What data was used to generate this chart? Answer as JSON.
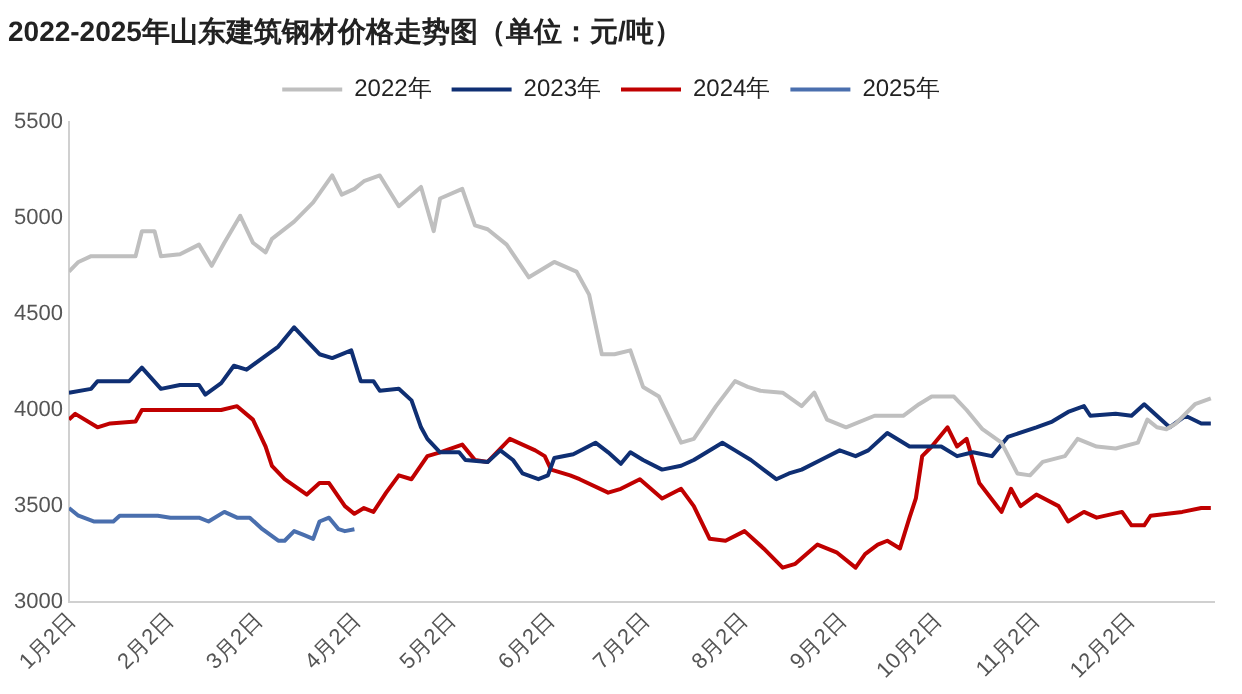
{
  "chart_data": {
    "type": "line",
    "title": "2022-2025年山东建筑钢材价格走势图（单位：元/吨）",
    "xlim": [
      "--01-01",
      "--12-28"
    ],
    "xticks": [
      {
        "value": "--01-02",
        "label": "1月2日"
      },
      {
        "value": "--02-02",
        "label": "2月2日"
      },
      {
        "value": "--03-02",
        "label": "3月2日"
      },
      {
        "value": "--04-02",
        "label": "4月2日"
      },
      {
        "value": "--05-02",
        "label": "5月2日"
      },
      {
        "value": "--06-02",
        "label": "6月2日"
      },
      {
        "value": "--07-02",
        "label": "7月2日"
      },
      {
        "value": "--08-02",
        "label": "8月2日"
      },
      {
        "value": "--09-02",
        "label": "9月2日"
      },
      {
        "value": "--10-02",
        "label": "10月2日"
      },
      {
        "value": "--11-02",
        "label": "11月2日"
      },
      {
        "value": "--12-02",
        "label": "12月2日"
      }
    ],
    "ylim": [
      3000,
      5500
    ],
    "yticks": [
      3000,
      3500,
      4000,
      4500,
      5000,
      5500
    ],
    "grid": false,
    "legend": "top",
    "marker": "none",
    "line_style": "solid",
    "series": [
      {
        "name": "2022年",
        "color": "#bfbfbf",
        "x": [
          "--01-01",
          "--01-04",
          "--01-08",
          "--01-22",
          "--01-24",
          "--01-28",
          "--01-30",
          "--02-05",
          "--02-11",
          "--02-15",
          "--02-19",
          "--02-24",
          "--02-28",
          "--03-04",
          "--03-06",
          "--03-13",
          "--03-19",
          "--03-25",
          "--03-28",
          "--04-01",
          "--04-04",
          "--04-09",
          "--04-15",
          "--04-22",
          "--04-26",
          "--04-28",
          "--05-05",
          "--05-09",
          "--05-13",
          "--05-19",
          "--05-26",
          "--06-03",
          "--06-10",
          "--06-14",
          "--06-18",
          "--06-22",
          "--06-27",
          "--07-01",
          "--07-06",
          "--07-13",
          "--07-17",
          "--07-24",
          "--07-30",
          "--08-03",
          "--08-07",
          "--08-14",
          "--08-20",
          "--08-24",
          "--08-28",
          "--09-03",
          "--09-12",
          "--09-21",
          "--09-26",
          "--09-30",
          "--10-07",
          "--10-11",
          "--10-16",
          "--10-22",
          "--10-27",
          "--10-31",
          "--11-04",
          "--11-11",
          "--11-15",
          "--11-21",
          "--11-27",
          "--12-04",
          "--12-07",
          "--12-10",
          "--12-13",
          "--12-16",
          "--12-22",
          "--12-27"
        ],
        "values": [
          4720,
          4770,
          4800,
          4800,
          4930,
          4930,
          4800,
          4810,
          4860,
          4750,
          4870,
          5010,
          4870,
          4820,
          4890,
          4980,
          5080,
          5220,
          5120,
          5150,
          5190,
          5220,
          5060,
          5160,
          4930,
          5100,
          5150,
          4960,
          4940,
          4860,
          4690,
          4770,
          4720,
          4600,
          4290,
          4290,
          4310,
          4120,
          4070,
          3830,
          3850,
          4020,
          4150,
          4120,
          4100,
          4090,
          4020,
          4090,
          3950,
          3910,
          3970,
          3970,
          4030,
          4070,
          4070,
          4000,
          3900,
          3830,
          3670,
          3660,
          3730,
          3760,
          3850,
          3810,
          3800,
          3830,
          3950,
          3910,
          3900,
          3930,
          4030,
          4060
        ]
      },
      {
        "name": "2023年",
        "color": "#0f2f73",
        "x": [
          "--01-01",
          "--01-08",
          "--01-10",
          "--01-20",
          "--01-24",
          "--01-30",
          "--02-05",
          "--02-11",
          "--02-13",
          "--02-18",
          "--02-22",
          "--02-26",
          "--03-03",
          "--03-08",
          "--03-13",
          "--03-17",
          "--03-21",
          "--03-25",
          "--03-31",
          "--04-03",
          "--04-07",
          "--04-09",
          "--04-15",
          "--04-19",
          "--04-22",
          "--04-24",
          "--04-28",
          "--05-04",
          "--05-06",
          "--05-13",
          "--05-17",
          "--05-21",
          "--05-24",
          "--05-29",
          "--06-01",
          "--06-03",
          "--06-09",
          "--06-16",
          "--06-20",
          "--06-24",
          "--06-27",
          "--07-01",
          "--07-07",
          "--07-13",
          "--07-17",
          "--07-26",
          "--07-30",
          "--08-04",
          "--08-12",
          "--08-16",
          "--08-20",
          "--08-26",
          "--09-01",
          "--09-06",
          "--09-10",
          "--09-16",
          "--09-23",
          "--10-03",
          "--10-08",
          "--10-13",
          "--10-19",
          "--10-24",
          "--11-02",
          "--11-07",
          "--11-12",
          "--11-17",
          "--11-19",
          "--11-27",
          "--12-02",
          "--12-06",
          "--12-10",
          "--12-14",
          "--12-19",
          "--12-24",
          "--12-27"
        ],
        "values": [
          4090,
          4110,
          4150,
          4150,
          4220,
          4110,
          4130,
          4130,
          4080,
          4140,
          4230,
          4210,
          4270,
          4330,
          4430,
          4360,
          4290,
          4270,
          4310,
          4150,
          4150,
          4100,
          4110,
          4050,
          3910,
          3850,
          3780,
          3780,
          3740,
          3730,
          3790,
          3740,
          3670,
          3640,
          3660,
          3750,
          3770,
          3830,
          3780,
          3720,
          3780,
          3740,
          3690,
          3710,
          3740,
          3830,
          3790,
          3740,
          3640,
          3670,
          3690,
          3740,
          3790,
          3760,
          3790,
          3880,
          3810,
          3810,
          3760,
          3780,
          3760,
          3860,
          3910,
          3940,
          3990,
          4020,
          3970,
          3980,
          3970,
          4030,
          3970,
          3910,
          3970,
          3930,
          3930
        ]
      },
      {
        "name": "2024年",
        "color": "#c00000",
        "x": [
          "--01-01",
          "--01-03",
          "--01-10",
          "--01-14",
          "--01-22",
          "--01-24",
          "--02-18",
          "--02-23",
          "--02-28",
          "--03-04",
          "--03-06",
          "--03-10",
          "--03-17",
          "--03-21",
          "--03-24",
          "--03-29",
          "--04-01",
          "--04-04",
          "--04-07",
          "--04-11",
          "--04-15",
          "--04-19",
          "--04-24",
          "--04-28",
          "--05-05",
          "--05-09",
          "--05-13",
          "--05-20",
          "--05-28",
          "--05-31",
          "--06-02",
          "--06-08",
          "--06-11",
          "--06-20",
          "--06-24",
          "--06-30",
          "--07-07",
          "--07-13",
          "--07-17",
          "--07-22",
          "--07-27",
          "--08-02",
          "--08-08",
          "--08-14",
          "--08-18",
          "--08-25",
          "--08-31",
          "--09-06",
          "--09-09",
          "--09-13",
          "--09-16",
          "--09-20",
          "--09-23",
          "--09-25",
          "--09-27",
          "--09-30",
          "--10-05",
          "--10-08",
          "--10-11",
          "--10-15",
          "--10-22",
          "--10-25",
          "--10-28",
          "--11-02",
          "--11-09",
          "--11-12",
          "--11-17",
          "--11-21",
          "--11-29",
          "--12-02",
          "--12-06",
          "--12-08",
          "--12-18",
          "--12-24",
          "--12-27"
        ],
        "values": [
          3950,
          3980,
          3910,
          3930,
          3940,
          4000,
          4000,
          4020,
          3950,
          3810,
          3710,
          3640,
          3560,
          3620,
          3620,
          3500,
          3460,
          3490,
          3470,
          3570,
          3660,
          3640,
          3760,
          3780,
          3820,
          3740,
          3730,
          3850,
          3790,
          3760,
          3690,
          3660,
          3640,
          3570,
          3590,
          3640,
          3540,
          3590,
          3500,
          3330,
          3320,
          3370,
          3280,
          3180,
          3200,
          3300,
          3260,
          3180,
          3250,
          3300,
          3320,
          3280,
          3440,
          3540,
          3760,
          3810,
          3910,
          3810,
          3850,
          3620,
          3470,
          3590,
          3500,
          3560,
          3500,
          3420,
          3470,
          3440,
          3470,
          3400,
          3400,
          3450,
          3470,
          3490,
          3490
        ]
      },
      {
        "name": "2025年",
        "color": "#4a6fae",
        "x": [
          "--01-01",
          "--01-04",
          "--01-09",
          "--01-15",
          "--01-17",
          "--01-29",
          "--02-02",
          "--02-11",
          "--02-14",
          "--02-19",
          "--02-23",
          "--02-27",
          "--03-03",
          "--03-08",
          "--03-10",
          "--03-13",
          "--03-16",
          "--03-19",
          "--03-21",
          "--03-24",
          "--03-27",
          "--03-29",
          "--04-01"
        ],
        "values": [
          3490,
          3450,
          3420,
          3420,
          3450,
          3450,
          3440,
          3440,
          3420,
          3470,
          3440,
          3440,
          3380,
          3320,
          3320,
          3370,
          3350,
          3330,
          3420,
          3440,
          3380,
          3370,
          3380
        ]
      }
    ]
  }
}
